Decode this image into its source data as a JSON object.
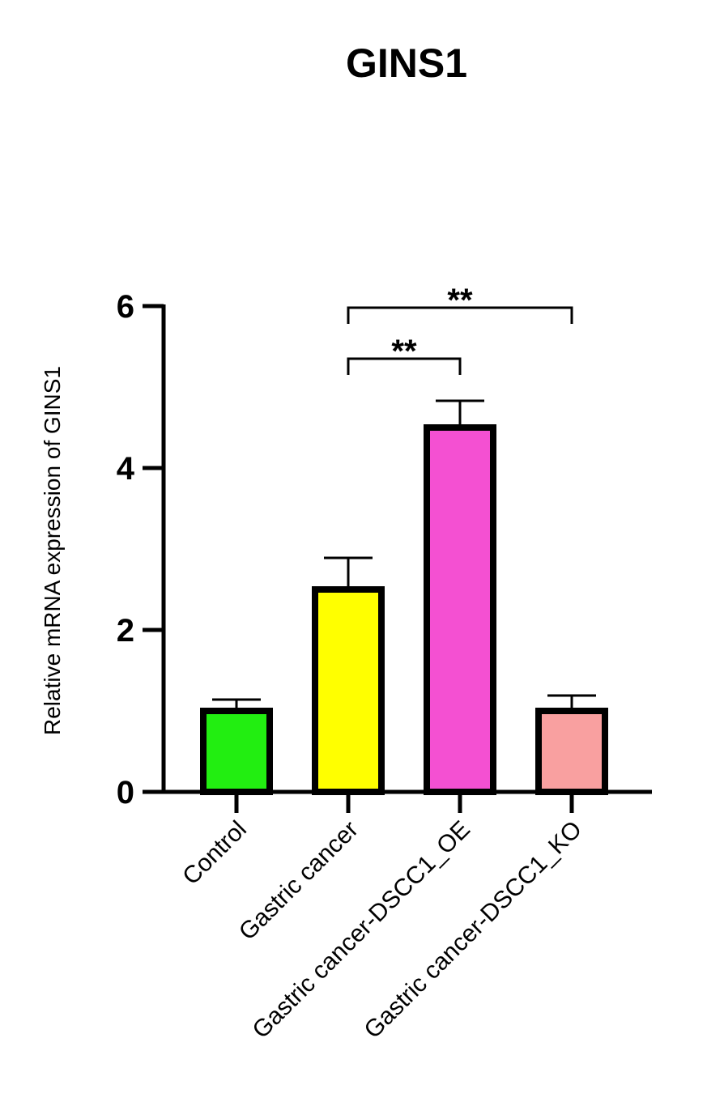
{
  "chart_data": {
    "type": "bar",
    "title": "GINS1",
    "xlabel": "",
    "ylabel": "Relative mRNA expression of GINS1",
    "categories": [
      "Control",
      "Gastric cancer",
      "Gastric cancer-DSCC1_OE",
      "Gastric cancer-DSCC1_KO"
    ],
    "values": [
      1.0,
      2.5,
      4.5,
      1.0
    ],
    "errors": [
      0.14,
      0.39,
      0.33,
      0.19
    ],
    "colors": [
      "#22ee11",
      "#ffff00",
      "#f450d2",
      "#f9a0a0"
    ],
    "ylim": [
      0,
      6
    ],
    "yticks": [
      0,
      2,
      4,
      6
    ],
    "grid": false,
    "legend": "none",
    "significance": [
      {
        "from": 1,
        "to": 2,
        "label": "**",
        "y": 5.35
      },
      {
        "from": 1,
        "to": 3,
        "label": "**",
        "y": 5.98
      }
    ]
  }
}
